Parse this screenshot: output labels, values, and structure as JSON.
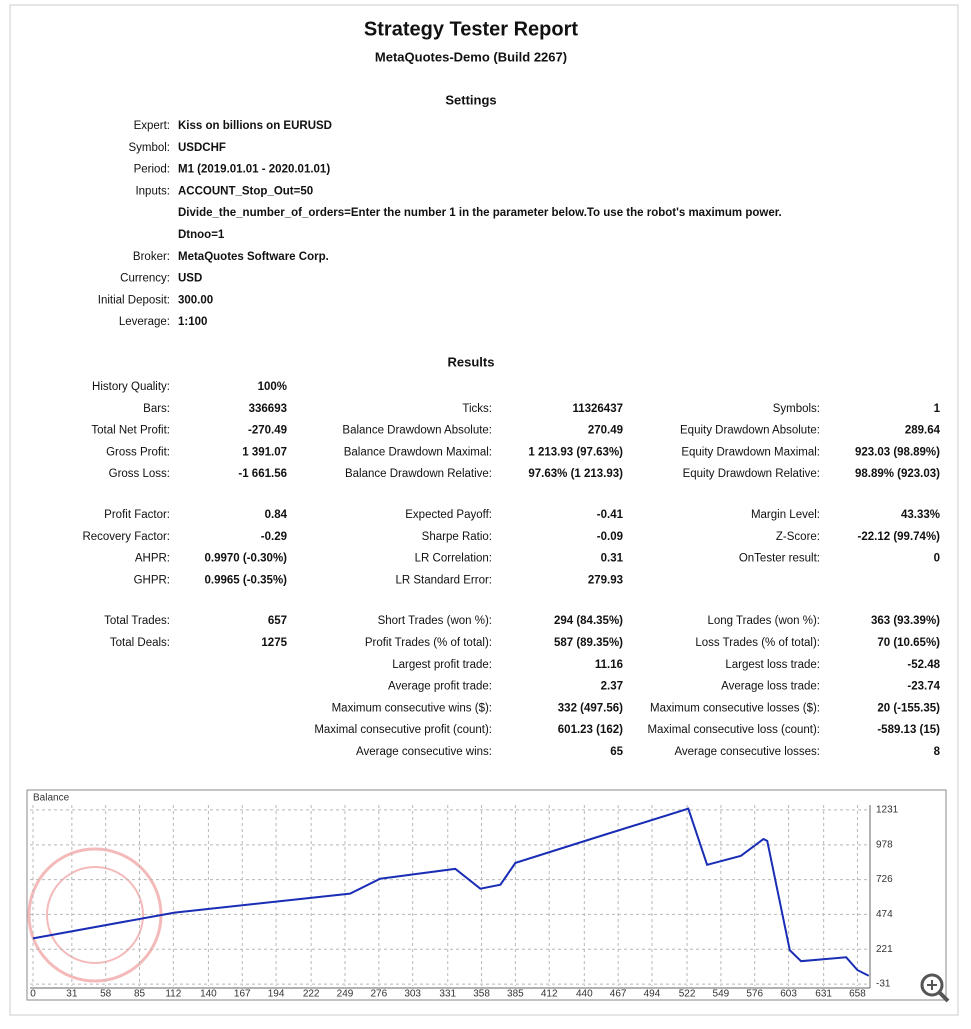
{
  "header": {
    "title": "Strategy Tester Report",
    "subtitle": "MetaQuotes-Demo (Build 2267)"
  },
  "settings": {
    "title": "Settings",
    "rows": [
      {
        "label": "Expert:",
        "values": [
          "Kiss on billions on EURUSD"
        ]
      },
      {
        "label": "Symbol:",
        "values": [
          "USDCHF"
        ]
      },
      {
        "label": "Period:",
        "values": [
          "M1 (2019.01.01 - 2020.01.01)"
        ]
      },
      {
        "label": "Inputs:",
        "values": [
          "ACCOUNT_Stop_Out=50",
          "Divide_the_number_of_orders=Enter the number 1 in the parameter below.To use the robot's maximum power.",
          "Dtnoo=1"
        ]
      },
      {
        "label": "Broker:",
        "values": [
          "MetaQuotes Software Corp."
        ]
      },
      {
        "label": "Currency:",
        "values": [
          "USD"
        ]
      },
      {
        "label": "Initial Deposit:",
        "values": [
          "300.00"
        ]
      },
      {
        "label": "Leverage:",
        "values": [
          "1:100"
        ]
      }
    ]
  },
  "results": {
    "title": "Results",
    "groups": [
      [
        [
          {
            "label": "History Quality:",
            "value": "100%"
          },
          null,
          null
        ],
        [
          {
            "label": "Bars:",
            "value": "336693"
          },
          {
            "label": "Ticks:",
            "value": "11326437"
          },
          {
            "label": "Symbols:",
            "value": "1"
          }
        ],
        [
          {
            "label": "Total Net Profit:",
            "value": "-270.49"
          },
          {
            "label": "Balance Drawdown Absolute:",
            "value": "270.49"
          },
          {
            "label": "Equity Drawdown Absolute:",
            "value": "289.64"
          }
        ],
        [
          {
            "label": "Gross Profit:",
            "value": "1 391.07"
          },
          {
            "label": "Balance Drawdown Maximal:",
            "value": "1 213.93 (97.63%)"
          },
          {
            "label": "Equity Drawdown Maximal:",
            "value": "923.03 (98.89%)"
          }
        ],
        [
          {
            "label": "Gross Loss:",
            "value": "-1 661.56"
          },
          {
            "label": "Balance Drawdown Relative:",
            "value": "97.63% (1 213.93)"
          },
          {
            "label": "Equity Drawdown Relative:",
            "value": "98.89% (923.03)"
          }
        ]
      ],
      [
        [
          {
            "label": "Profit Factor:",
            "value": "0.84"
          },
          {
            "label": "Expected Payoff:",
            "value": "-0.41"
          },
          {
            "label": "Margin Level:",
            "value": "43.33%"
          }
        ],
        [
          {
            "label": "Recovery Factor:",
            "value": "-0.29"
          },
          {
            "label": "Sharpe Ratio:",
            "value": "-0.09"
          },
          {
            "label": "Z-Score:",
            "value": "-22.12 (99.74%)"
          }
        ],
        [
          {
            "label": "AHPR:",
            "value": "0.9970 (-0.30%)"
          },
          {
            "label": "LR Correlation:",
            "value": "0.31"
          },
          {
            "label": "OnTester result:",
            "value": "0"
          }
        ],
        [
          {
            "label": "GHPR:",
            "value": "0.9965 (-0.35%)"
          },
          {
            "label": "LR Standard Error:",
            "value": "279.93"
          },
          null
        ]
      ],
      [
        [
          {
            "label": "Total Trades:",
            "value": "657"
          },
          {
            "label": "Short Trades (won %):",
            "value": "294 (84.35%)"
          },
          {
            "label": "Long Trades (won %):",
            "value": "363 (93.39%)"
          }
        ],
        [
          {
            "label": "Total Deals:",
            "value": "1275"
          },
          {
            "label": "Profit Trades (% of total):",
            "value": "587 (89.35%)"
          },
          {
            "label": "Loss Trades (% of total):",
            "value": "70 (10.65%)"
          }
        ],
        [
          null,
          {
            "label": "Largest profit trade:",
            "value": "11.16"
          },
          {
            "label": "Largest loss trade:",
            "value": "-52.48"
          }
        ],
        [
          null,
          {
            "label": "Average profit trade:",
            "value": "2.37"
          },
          {
            "label": "Average loss trade:",
            "value": "-23.74"
          }
        ],
        [
          null,
          {
            "label": "Maximum consecutive wins ($):",
            "value": "332 (497.56)"
          },
          {
            "label": "Maximum consecutive losses ($):",
            "value": "20 (-155.35)"
          }
        ],
        [
          null,
          {
            "label": "Maximal consecutive profit (count):",
            "value": "601.23 (162)"
          },
          {
            "label": "Maximal consecutive loss (count):",
            "value": "-589.13 (15)"
          }
        ],
        [
          null,
          {
            "label": "Average consecutive wins:",
            "value": "65"
          },
          {
            "label": "Average consecutive losses:",
            "value": "8"
          }
        ]
      ]
    ]
  },
  "chart_data": {
    "type": "line",
    "x": [
      0,
      113,
      253,
      277,
      337,
      357,
      373,
      385,
      453,
      523,
      538,
      565,
      583,
      586,
      604,
      613,
      649,
      658,
      667
    ],
    "series": [
      {
        "name": "Balance",
        "color": "#1a2db5",
        "values": [
          300,
          487,
          624,
          732,
          804,
          660,
          689,
          847,
          1042,
          1240,
          833,
          898,
          1020,
          1006,
          214,
          135,
          163,
          70,
          29.51
        ]
      }
    ],
    "xlim": [
      0,
      668
    ],
    "ylim": [
      -74,
      1339
    ],
    "xticks": [
      0,
      31,
      58,
      85,
      112,
      140,
      167,
      194,
      222,
      249,
      276,
      303,
      331,
      358,
      385,
      412,
      440,
      467,
      494,
      522,
      549,
      576,
      603,
      631,
      658
    ],
    "yticks": [
      1231,
      978,
      726,
      474,
      221,
      -31
    ],
    "grid": true
  }
}
